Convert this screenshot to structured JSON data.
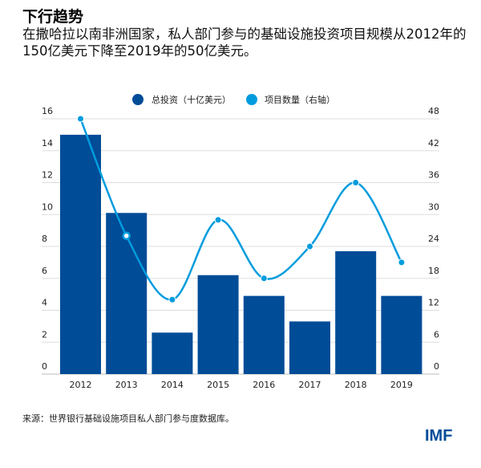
{
  "title": "下行趋势",
  "subtitle": "在撒哈拉以南非洲国家，私人部门参与的基础设施投资项目规模从2012年的150亿美元下降至2019年的50亿美元。",
  "source": "来源：世界银行基础设施项目私人部门参与度数据库。",
  "logo": "IMF",
  "chart_data": {
    "type": "bar+line",
    "categories": [
      "2012",
      "2013",
      "2014",
      "2015",
      "2016",
      "2017",
      "2018",
      "2019"
    ],
    "series": [
      {
        "name": "总投资（十亿美元）",
        "type": "bar",
        "axis": "left",
        "color": "#004c97",
        "values": [
          15,
          10.1,
          2.6,
          6.2,
          4.9,
          3.3,
          7.7,
          4.9
        ]
      },
      {
        "name": "项目数量（右轴）",
        "type": "line",
        "axis": "right",
        "color": "#009cde",
        "values": [
          48,
          26,
          14,
          29,
          18,
          24,
          36,
          21
        ]
      }
    ],
    "left_axis": {
      "range": [
        0,
        16
      ],
      "ticks": [
        "0",
        "2",
        "4",
        "6",
        "8",
        "10",
        "12",
        "14",
        "16"
      ]
    },
    "right_axis": {
      "range": [
        0,
        48
      ],
      "ticks": [
        "0",
        "6",
        "12",
        "18",
        "24",
        "30",
        "36",
        "42",
        "48"
      ]
    },
    "grid": true,
    "legend": "top-center"
  }
}
